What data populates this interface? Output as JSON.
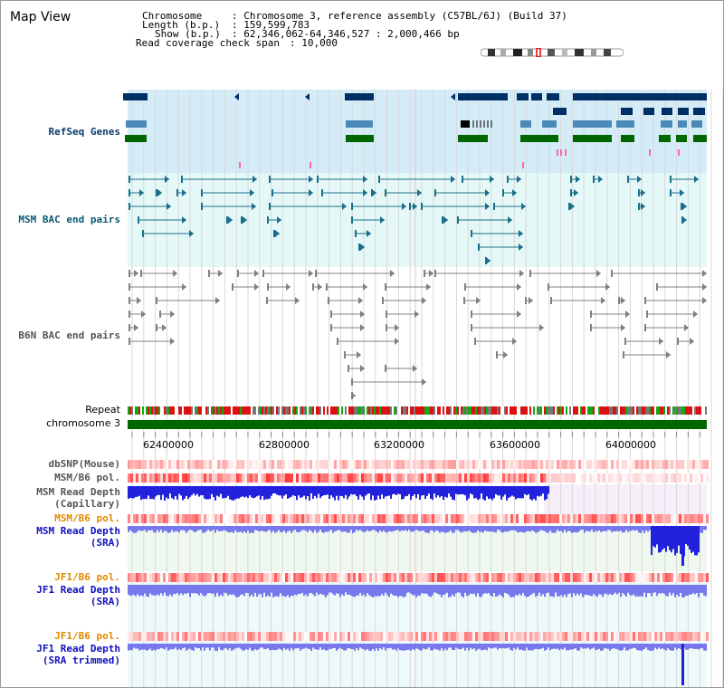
{
  "title": "Map View",
  "header": {
    "chromosome_key": "Chromosome",
    "chromosome_value": ": Chromosome 3, reference assembly (C57BL/6J) (Build 37)",
    "length_key": "Length (b.p.)",
    "length_value": ": 159,599,783",
    "show_key": "Show (b.p.)",
    "show_value": ": 62,346,062-64,346,527 : 2,000,466 bp",
    "coverage_key": "Read coverage check span",
    "coverage_value": ": 10,000"
  },
  "tracks": {
    "refseq": "RefSeq Genes",
    "msm_bac": "MSM BAC end pairs",
    "b6n_bac": "B6N BAC end pairs",
    "repeat": "Repeat",
    "chromosome": "chromosome 3",
    "dbsnp": "dbSNP(Mouse)",
    "msm_b6_pol_1": "MSM/B6 pol.",
    "msm_read_depth_cap_1": "MSM Read Depth",
    "msm_read_depth_cap_2": "(Capillary)",
    "msm_b6_pol_2": "MSM/B6 pol.",
    "msm_read_depth_sra_1": "MSM Read Depth",
    "msm_read_depth_sra_2": "(SRA)",
    "jf1_b6_pol_1": "JF1/B6 pol.",
    "jf1_read_depth_sra_1": "JF1 Read Depth",
    "jf1_read_depth_sra_2": "(SRA)",
    "jf1_b6_pol_2": "JF1/B6 pol.",
    "jf1_read_depth_trim_1": "JF1 Read Depth",
    "jf1_read_depth_trim_2": "(SRA trimmed)"
  },
  "axis_labels": [
    "62400000",
    "62800000",
    "63200000",
    "63600000",
    "64000000"
  ],
  "colors": {
    "refseq_bg": "#d4ecf8",
    "bac_bg": "#e4f8f8",
    "gene_navy": "#002f66",
    "gene_steel": "#4b8ab8",
    "gene_green": "#006600",
    "msm_bac": "#1b6f8a",
    "b6n_bac": "#808080",
    "chromosome": "#006600",
    "depth_blue": "#2222dd",
    "depth_light": "#7777ee",
    "pol_red": "#ee3333",
    "label_navy": "#0b3b6e",
    "label_teal": "#0b5a72",
    "label_gray": "#555555",
    "label_orange": "#e08a00",
    "label_blue": "#1010c0"
  }
}
